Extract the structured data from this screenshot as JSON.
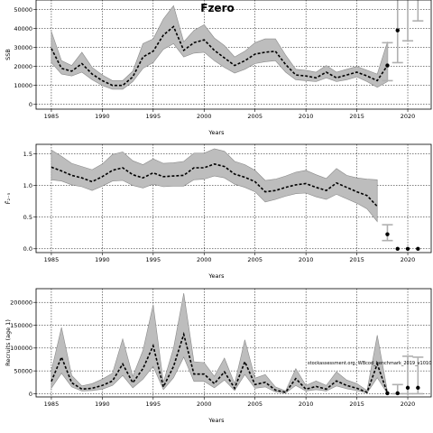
{
  "figure": {
    "title": "Fzero",
    "credit": "stockassessment.org, WBcod_benchmark_2019_v1010"
  },
  "chart_data": [
    {
      "type": "line",
      "ylabel": "SSB",
      "xlabel": "Years",
      "xlim": [
        1983.5,
        2022.3
      ],
      "ylim": [
        -2500,
        55000
      ],
      "x_ticks": [
        1985,
        1990,
        1995,
        2000,
        2005,
        2010,
        2015,
        2020
      ],
      "y_ticks": [
        0,
        10000,
        20000,
        30000,
        40000,
        50000
      ],
      "grid": true,
      "band_color": "#bdbdbd",
      "line_color": "#000000",
      "x": [
        1985,
        1986,
        1987,
        1988,
        1989,
        1990,
        1991,
        1992,
        1993,
        1994,
        1995,
        1996,
        1997,
        1998,
        1999,
        2000,
        2001,
        2002,
        2003,
        2004,
        2005,
        2006,
        2007,
        2008,
        2009,
        2010,
        2011,
        2012,
        2013,
        2014,
        2015,
        2016,
        2017,
        2018
      ],
      "series": [
        {
          "values": [
            29500,
            19000,
            17500,
            21500,
            16000,
            12500,
            10000,
            10000,
            14500,
            25000,
            28000,
            36500,
            41000,
            28500,
            32500,
            34000,
            28500,
            24500,
            20500,
            23000,
            26500,
            27500,
            28000,
            21000,
            15500,
            15000,
            14000,
            17000,
            14000,
            15500,
            17000,
            15000,
            12500,
            20500
          ]
        },
        {
          "values": [
            22000,
            16000,
            15000,
            17000,
            13000,
            10000,
            8000,
            8000,
            12000,
            19000,
            22000,
            29000,
            32000,
            25000,
            27000,
            27500,
            23000,
            19500,
            16500,
            18500,
            21500,
            22500,
            23000,
            17000,
            13000,
            12500,
            12000,
            14000,
            12000,
            13000,
            14500,
            12000,
            9000,
            12000
          ]
        },
        {
          "values": [
            38500,
            23000,
            20500,
            27500,
            19500,
            15500,
            12500,
            12500,
            17500,
            32000,
            34500,
            45000,
            52000,
            33000,
            39000,
            42000,
            35000,
            31000,
            25000,
            28000,
            32500,
            34500,
            34500,
            26000,
            18500,
            18000,
            17000,
            20500,
            17000,
            18500,
            20000,
            18000,
            16000,
            33000
          ]
        }
      ],
      "projection": {
        "x": [
          2019,
          2020,
          2021
        ],
        "median": [
          39000,
          null,
          null
        ],
        "lower": [
          22000,
          33500,
          44000
        ],
        "upper": [
          55000,
          55000,
          55000
        ]
      },
      "projection_interval_2018": {
        "x": 2018,
        "lower": 12500,
        "upper": 32500
      }
    },
    {
      "type": "line",
      "ylabel": "F̄₂₋₅",
      "xlabel": "Years",
      "xlim": [
        1983.5,
        2022.3
      ],
      "ylim": [
        -0.06,
        1.65
      ],
      "x_ticks": [
        1985,
        1990,
        1995,
        2000,
        2005,
        2010,
        2015,
        2020
      ],
      "y_ticks": [
        0.0,
        0.5,
        1.0,
        1.5
      ],
      "grid": true,
      "band_color": "#bdbdbd",
      "line_color": "#000000",
      "x": [
        1985,
        1986,
        1987,
        1988,
        1989,
        1990,
        1991,
        1992,
        1993,
        1994,
        1995,
        1996,
        1997,
        1998,
        1999,
        2000,
        2001,
        2002,
        2003,
        2004,
        2005,
        2006,
        2007,
        2008,
        2009,
        2010,
        2011,
        2012,
        2013,
        2014,
        2015,
        2016,
        2017
      ],
      "series": [
        {
          "values": [
            1.29,
            1.23,
            1.16,
            1.12,
            1.06,
            1.14,
            1.24,
            1.28,
            1.17,
            1.12,
            1.2,
            1.14,
            1.15,
            1.16,
            1.28,
            1.28,
            1.34,
            1.3,
            1.18,
            1.13,
            1.06,
            0.9,
            0.92,
            0.97,
            1.01,
            1.03,
            0.97,
            0.92,
            1.04,
            0.97,
            0.9,
            0.84,
            0.67
          ]
        },
        {
          "values": [
            1.09,
            1.07,
            1.01,
            0.98,
            0.92,
            0.99,
            1.07,
            1.08,
            1.0,
            0.96,
            1.02,
            0.98,
            0.99,
            0.99,
            1.09,
            1.1,
            1.15,
            1.12,
            1.02,
            0.97,
            0.9,
            0.74,
            0.78,
            0.83,
            0.87,
            0.88,
            0.82,
            0.78,
            0.86,
            0.79,
            0.72,
            0.63,
            0.43
          ]
        },
        {
          "values": [
            1.56,
            1.46,
            1.35,
            1.3,
            1.25,
            1.34,
            1.49,
            1.53,
            1.39,
            1.33,
            1.42,
            1.35,
            1.36,
            1.38,
            1.51,
            1.51,
            1.58,
            1.54,
            1.38,
            1.33,
            1.24,
            1.08,
            1.1,
            1.15,
            1.21,
            1.24,
            1.17,
            1.11,
            1.27,
            1.16,
            1.12,
            1.1,
            1.09
          ]
        }
      ],
      "projection": {
        "x": [
          2018,
          2019,
          2020,
          2021
        ],
        "median": [
          0.23,
          0.0,
          0.0,
          0.0
        ],
        "lower": [
          0.13,
          null,
          null,
          null
        ],
        "upper": [
          0.38,
          null,
          null,
          null
        ]
      }
    },
    {
      "type": "line",
      "ylabel": "Recruits (age 1)",
      "xlabel": "Years",
      "xlim": [
        1983.5,
        2022.3
      ],
      "ylim": [
        -7000,
        230000
      ],
      "x_ticks": [
        1985,
        1990,
        1995,
        2000,
        2005,
        2010,
        2015,
        2020
      ],
      "y_ticks": [
        0,
        50000,
        100000,
        150000,
        200000
      ],
      "grid": true,
      "band_color": "#bdbdbd",
      "line_color": "#000000",
      "x": [
        1985,
        1986,
        1987,
        1988,
        1989,
        1990,
        1991,
        1992,
        1993,
        1994,
        1995,
        1996,
        1997,
        1998,
        1999,
        2000,
        2001,
        2002,
        2003,
        2004,
        2005,
        2006,
        2007,
        2008,
        2009,
        2010,
        2011,
        2012,
        2013,
        2014,
        2015,
        2016,
        2017,
        2018
      ],
      "series": [
        {
          "values": [
            27000,
            80000,
            24000,
            10000,
            12000,
            18000,
            28000,
            65000,
            24000,
            55000,
            105000,
            15000,
            60000,
            130000,
            43000,
            43000,
            22000,
            48000,
            12000,
            70000,
            20000,
            25000,
            8000,
            3000,
            33000,
            10000,
            16000,
            10000,
            28000,
            18000,
            12000,
            3000,
            65000,
            1000
          ]
        },
        {
          "values": [
            12000,
            45000,
            15000,
            6000,
            7000,
            10000,
            18000,
            40000,
            13000,
            32000,
            60000,
            9000,
            35000,
            80000,
            27000,
            27000,
            13000,
            30000,
            7000,
            42000,
            12000,
            15000,
            4000,
            1500,
            18000,
            6000,
            9000,
            6000,
            17000,
            11000,
            7000,
            1500,
            35000,
            100
          ]
        },
        {
          "values": [
            50000,
            145000,
            40000,
            17000,
            22000,
            32000,
            45000,
            120000,
            38000,
            95000,
            195000,
            25000,
            100000,
            220000,
            70000,
            68000,
            38000,
            78000,
            22000,
            118000,
            34000,
            42000,
            15000,
            6000,
            55000,
            18000,
            28000,
            18000,
            48000,
            30000,
            22000,
            7000,
            128000,
            5000
          ]
        }
      ],
      "projection": {
        "x": [
          2018,
          2019,
          2020,
          2021
        ],
        "median": [
          1000,
          1000,
          13000,
          13000
        ],
        "lower": [
          null,
          0,
          0,
          0
        ],
        "upper": [
          null,
          20000,
          82000,
          80000
        ]
      }
    }
  ]
}
